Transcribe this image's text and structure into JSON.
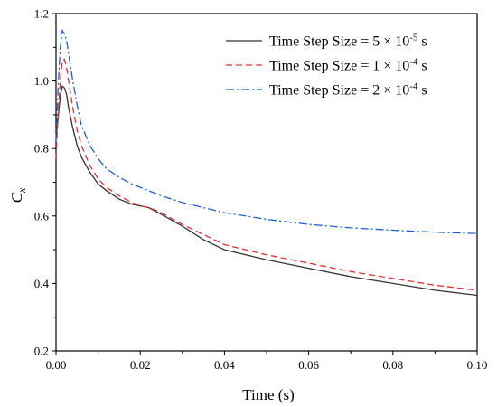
{
  "chart_data": {
    "type": "line",
    "xlabel": "Time (s)",
    "ylabel": "C",
    "ylabel_sub": "x",
    "xlim": [
      0,
      0.1
    ],
    "ylim": [
      0.2,
      1.2
    ],
    "xticks": [
      "0.00",
      "0.02",
      "0.04",
      "0.06",
      "0.08",
      "0.10"
    ],
    "yticks": [
      "0.2",
      "0.4",
      "0.6",
      "0.8",
      "1.0",
      "1.2"
    ],
    "grid": false,
    "legend_position": "top-right",
    "series": [
      {
        "name": "Time Step Size = 5 × 10",
        "name_exp": "-5",
        "name_unit": " s",
        "color": "#333333",
        "dash": "solid",
        "x": [
          0.0,
          0.0005,
          0.001,
          0.0015,
          0.002,
          0.0025,
          0.003,
          0.004,
          0.005,
          0.006,
          0.008,
          0.01,
          0.012,
          0.015,
          0.018,
          0.02,
          0.022,
          0.025,
          0.03,
          0.035,
          0.04,
          0.05,
          0.06,
          0.07,
          0.08,
          0.09,
          0.1
        ],
        "y": [
          0.83,
          0.89,
          0.955,
          0.985,
          0.98,
          0.96,
          0.92,
          0.86,
          0.81,
          0.775,
          0.73,
          0.695,
          0.675,
          0.65,
          0.635,
          0.63,
          0.625,
          0.605,
          0.57,
          0.53,
          0.5,
          0.47,
          0.445,
          0.42,
          0.4,
          0.38,
          0.365
        ]
      },
      {
        "name": "Time Step Size = 1 × 10",
        "name_exp": "-4",
        "name_unit": " s",
        "color": "#e03030",
        "dash": "dashed",
        "x": [
          0.0,
          0.0005,
          0.001,
          0.0015,
          0.002,
          0.0025,
          0.003,
          0.004,
          0.005,
          0.006,
          0.008,
          0.01,
          0.012,
          0.015,
          0.018,
          0.02,
          0.022,
          0.025,
          0.03,
          0.035,
          0.04,
          0.05,
          0.06,
          0.07,
          0.08,
          0.09,
          0.1
        ],
        "y": [
          0.77,
          0.9,
          1.0,
          1.06,
          1.065,
          1.04,
          1.0,
          0.92,
          0.855,
          0.81,
          0.75,
          0.71,
          0.685,
          0.66,
          0.64,
          0.63,
          0.625,
          0.61,
          0.575,
          0.545,
          0.515,
          0.485,
          0.46,
          0.435,
          0.415,
          0.395,
          0.38
        ]
      },
      {
        "name": "Time Step Size = 2 × 10",
        "name_exp": "-4",
        "name_unit": " s",
        "color": "#2060c8",
        "dash": "dashdot",
        "x": [
          0.0,
          0.0005,
          0.001,
          0.0015,
          0.002,
          0.0025,
          0.003,
          0.004,
          0.005,
          0.006,
          0.008,
          0.01,
          0.012,
          0.015,
          0.018,
          0.02,
          0.022,
          0.025,
          0.03,
          0.035,
          0.04,
          0.05,
          0.06,
          0.07,
          0.08,
          0.09,
          0.1
        ],
        "y": [
          0.82,
          0.98,
          1.1,
          1.15,
          1.14,
          1.12,
          1.08,
          1.0,
          0.93,
          0.87,
          0.81,
          0.77,
          0.74,
          0.715,
          0.695,
          0.685,
          0.675,
          0.66,
          0.64,
          0.625,
          0.61,
          0.59,
          0.575,
          0.565,
          0.558,
          0.552,
          0.548
        ]
      }
    ]
  }
}
